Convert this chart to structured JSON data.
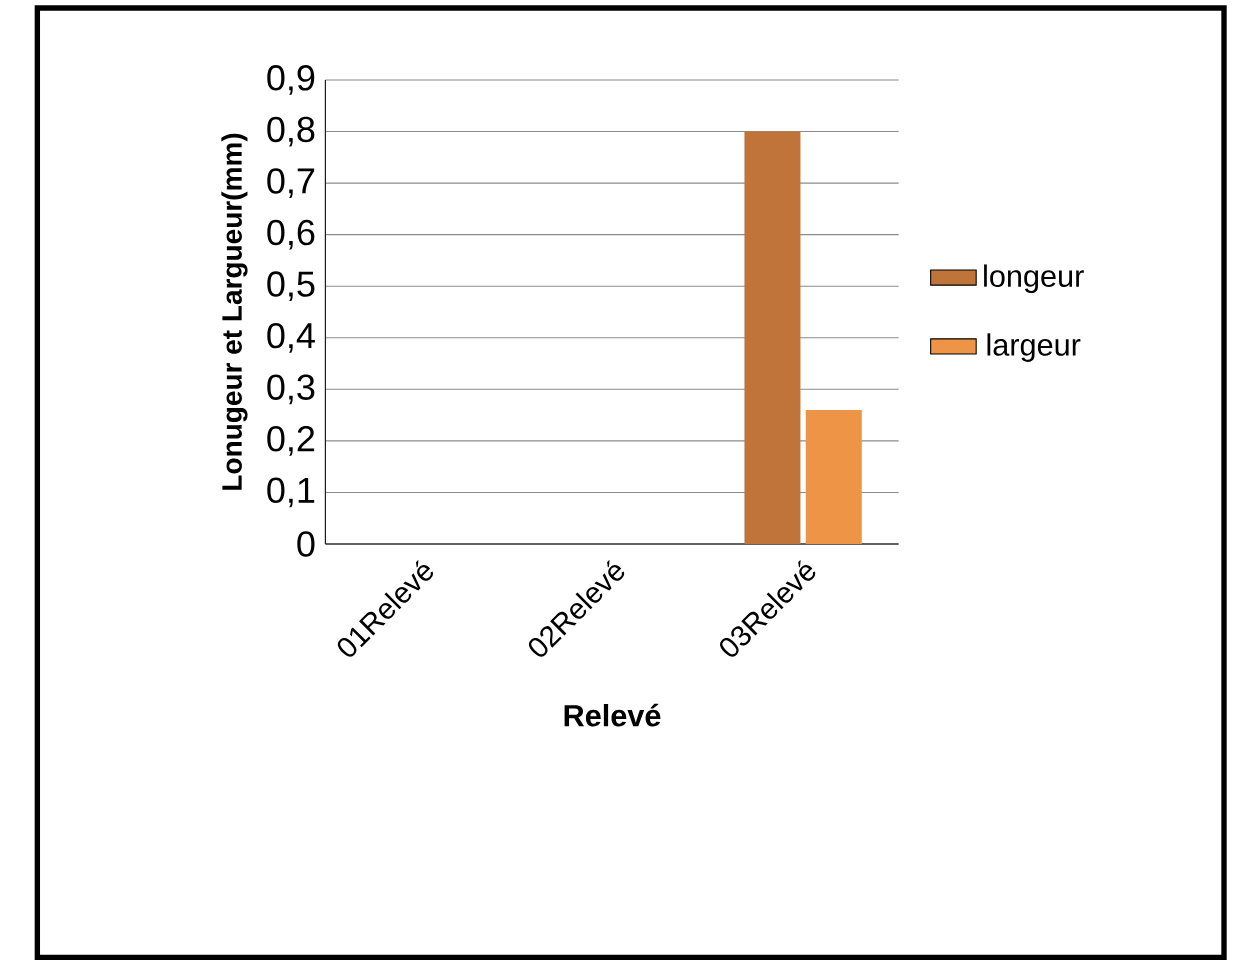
{
  "chart_data": {
    "type": "bar",
    "xlabel": "Relevé",
    "ylabel": "Lonugeur et Largueur(mm)",
    "categories": [
      "01Relevé",
      "02Relevé",
      "03Relevé"
    ],
    "series": [
      {
        "name": "longeur",
        "color": "#c0743a",
        "values": [
          0,
          0,
          0.8
        ]
      },
      {
        "name": "largeur",
        "color": "#ed9446",
        "values": [
          0,
          0,
          0.26
        ]
      }
    ],
    "ylim": [
      0,
      0.9
    ],
    "yticks": [
      0,
      {
        "value": 0.1,
        "label": "0,1"
      },
      {
        "value": 0.2,
        "label": "0,2"
      },
      {
        "value": 0.3,
        "label": "0,3"
      },
      {
        "value": 0.4,
        "label": "0,4"
      },
      {
        "value": 0.5,
        "label": "0,5"
      },
      {
        "value": 0.6,
        "label": "0,6"
      },
      {
        "value": 0.7,
        "label": "0,7"
      },
      {
        "value": 0.8,
        "label": "0,8"
      },
      {
        "value": 0.9,
        "label": "0,9"
      }
    ],
    "grid": "y",
    "legend": "right"
  }
}
